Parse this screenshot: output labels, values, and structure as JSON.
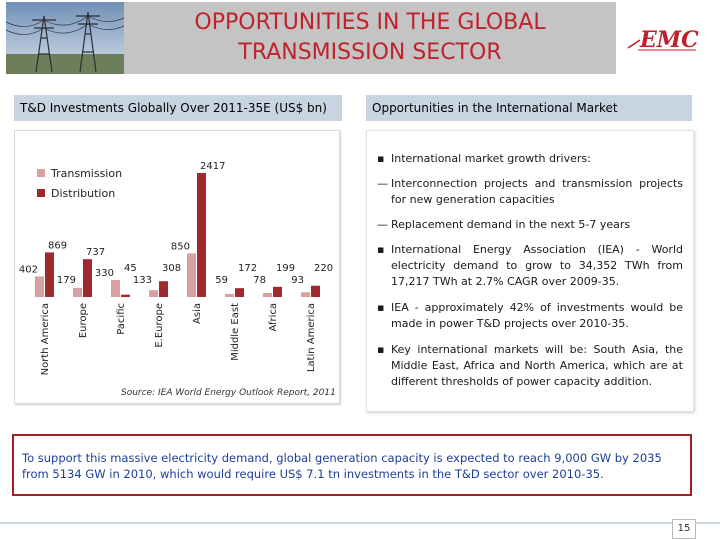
{
  "header": {
    "title": "OPPORTUNITIES IN THE GLOBAL\nTRANSMISSION SECTOR",
    "logo_text": "EMC"
  },
  "left_section": {
    "header": "T&D Investments Globally Over 2011-35E (US$ bn)"
  },
  "right_section": {
    "header": "Opportunities in the International Market",
    "items": [
      {
        "marker": "▪",
        "text": "International market growth drivers:"
      },
      {
        "marker": "—",
        "text": "Interconnection projects and transmission projects for new generation capacities"
      },
      {
        "marker": "—",
        "text": "Replacement demand in the next 5-7 years"
      },
      {
        "marker": "▪",
        "text": "International Energy Association (IEA) - World electricity demand to grow to 34,352 TWh from 17,217 TWh at 2.7% CAGR over 2009-35."
      },
      {
        "marker": "▪",
        "text": "IEA - approximately 42% of investments would be made in power T&D projects over 2010-35."
      },
      {
        "marker": "▪",
        "text": "Key international markets will be: South Asia, the Middle East, Africa and North America, which are at different thresholds of power capacity addition."
      }
    ]
  },
  "bottom_text": "To support this massive electricity demand, global generation capacity is expected to reach 9,000 GW by 2035 from 5134 GW in 2010, which would require US$ 7.1 tn investments in the T&D sector over 2010-35.",
  "page_number": "15",
  "colors": {
    "title_red": "#c0222b",
    "transmission": "#d9a0a2",
    "distribution": "#a0292e",
    "bar_header": "#c9d4e3",
    "bottom_text_blue": "#1c3f94",
    "bottom_border": "#a51f22"
  },
  "chart_data": {
    "type": "bar",
    "title": "",
    "source": "Source: IEA World Energy Outlook Report, 2011",
    "legend_position": "top-left",
    "categories": [
      "North America",
      "Europe",
      "Pacific",
      "E.Europe",
      "Asia",
      "Middle East",
      "Africa",
      "Latin America"
    ],
    "series": [
      {
        "name": "Transmission",
        "values": [
          402,
          179,
          330,
          133,
          850,
          59,
          78,
          93
        ]
      },
      {
        "name": "Distribution",
        "values": [
          869,
          737,
          45,
          308,
          2417,
          172,
          199,
          220
        ]
      }
    ],
    "ylim": [
      0,
      2417
    ],
    "grid": false
  }
}
